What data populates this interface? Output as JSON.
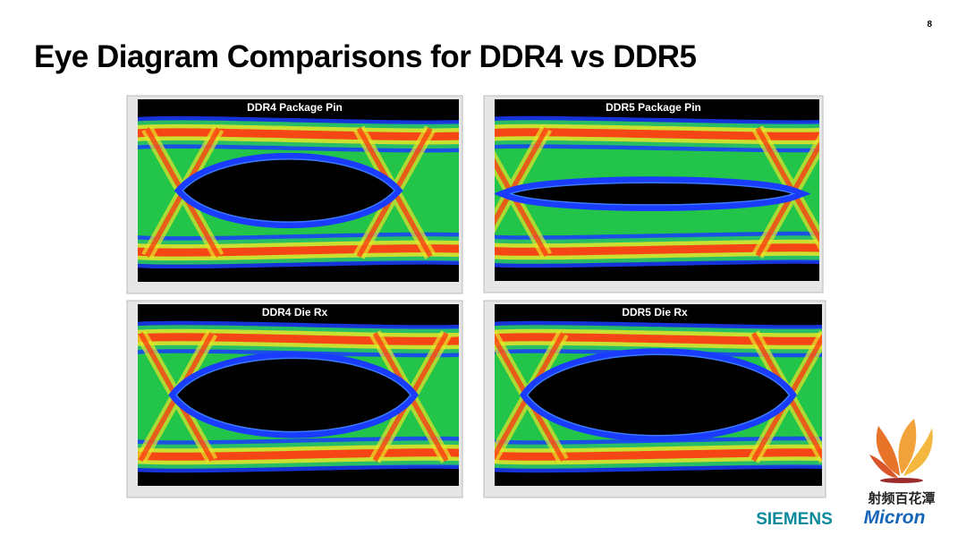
{
  "page_number": "8",
  "title": "Eye Diagram Comparisons for DDR4 vs DDR5",
  "panels": [
    {
      "title": "DDR4 Package Pin"
    },
    {
      "title": "DDR5 Package Pin"
    },
    {
      "title": "DDR4 Die Rx"
    },
    {
      "title": "DDR5 Die Rx"
    }
  ],
  "logos": {
    "watermark": "射频百花潭",
    "siemens": "SIEMENS",
    "micron": "Micron"
  }
}
